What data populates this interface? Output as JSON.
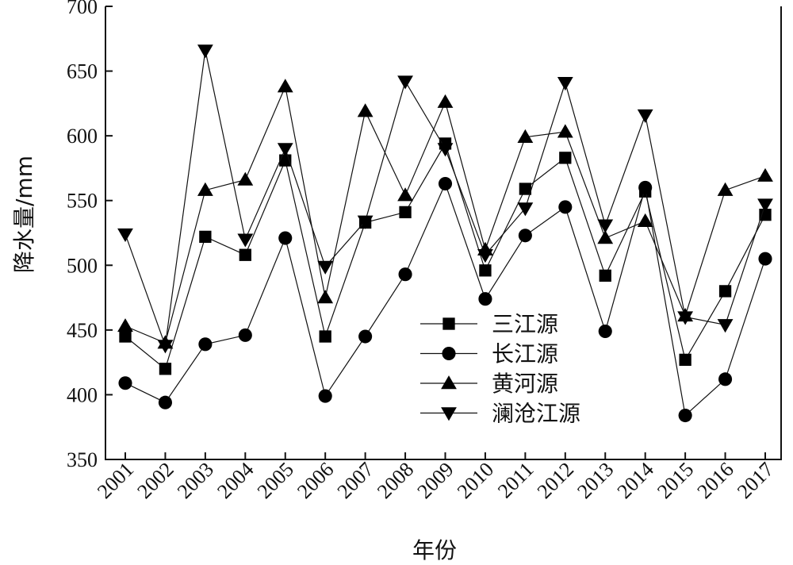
{
  "chart_data": {
    "type": "line",
    "title": "",
    "xlabel": "年份",
    "ylabel": "降水量/mm",
    "categories": [
      "2001",
      "2002",
      "2003",
      "2004",
      "2005",
      "2006",
      "2007",
      "2008",
      "2009",
      "2010",
      "2011",
      "2012",
      "2013",
      "2014",
      "2015",
      "2016",
      "2017"
    ],
    "ylim": [
      350,
      700
    ],
    "yticks": [
      350,
      400,
      450,
      500,
      550,
      600,
      650,
      700
    ],
    "grid": false,
    "legend_position": "center-right",
    "series": [
      {
        "name": "三江源",
        "marker": "square",
        "values": [
          445,
          420,
          522,
          508,
          581,
          445,
          533,
          541,
          594,
          496,
          559,
          583,
          492,
          557,
          427,
          480,
          539
        ]
      },
      {
        "name": "长江源",
        "marker": "circle",
        "values": [
          409,
          394,
          439,
          446,
          521,
          399,
          445,
          493,
          563,
          474,
          523,
          545,
          449,
          560,
          384,
          412,
          505
        ]
      },
      {
        "name": "黄河源",
        "marker": "triangle-up",
        "values": [
          453,
          440,
          558,
          566,
          638,
          475,
          619,
          554,
          626,
          512,
          599,
          603,
          521,
          534,
          461,
          558,
          569
        ]
      },
      {
        "name": "澜沧江源",
        "marker": "triangle-down",
        "values": [
          524,
          438,
          666,
          520,
          590,
          499,
          534,
          642,
          590,
          508,
          544,
          641,
          531,
          616,
          460,
          454,
          547
        ]
      }
    ]
  }
}
